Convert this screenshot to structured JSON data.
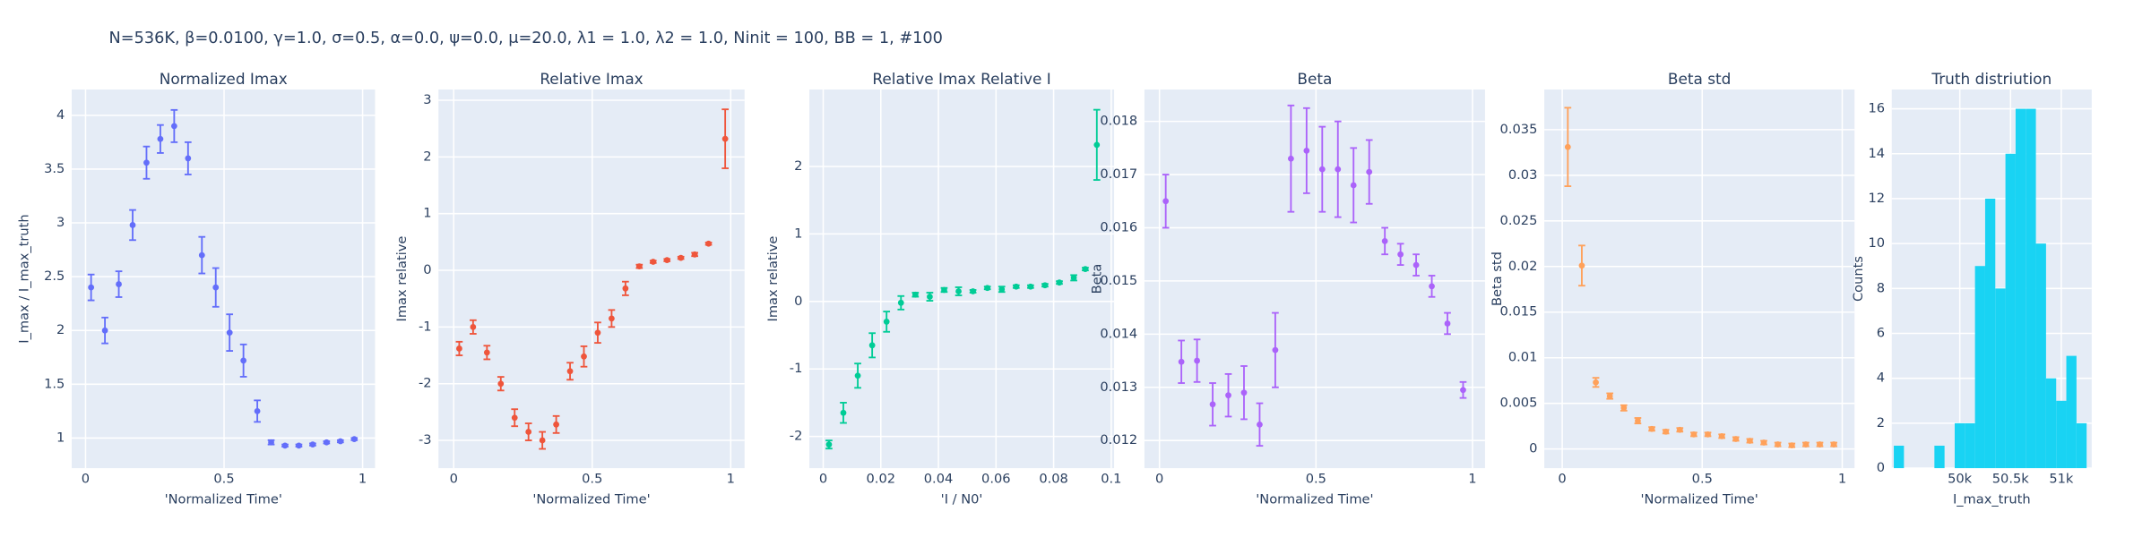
{
  "title": "N=536K, β=0.0100, γ=1.0, σ=0.5,  α=0.0, ψ=0.0, μ=20.0, λ1 = 1.0, λ2 = 1.0, Ninit = 100, BB = 1, #100",
  "chart_data": [
    {
      "type": "scatter",
      "title": "Normalized Imax",
      "x_label": "'Normalized Time'",
      "y_label": "I_max / I_max_truth",
      "x": [
        0.02,
        0.07,
        0.12,
        0.17,
        0.22,
        0.27,
        0.32,
        0.37,
        0.42,
        0.47,
        0.52,
        0.57,
        0.62,
        0.67,
        0.72,
        0.77,
        0.82,
        0.87,
        0.92,
        0.97
      ],
      "values": [
        2.4,
        2.0,
        2.43,
        2.98,
        3.56,
        3.78,
        3.9,
        3.6,
        2.7,
        2.4,
        1.98,
        1.72,
        1.25,
        0.96,
        0.93,
        0.93,
        0.94,
        0.96,
        0.97,
        0.99
      ],
      "errors": [
        0.12,
        0.12,
        0.12,
        0.14,
        0.15,
        0.13,
        0.15,
        0.15,
        0.17,
        0.18,
        0.17,
        0.15,
        0.1,
        0.02,
        0.01,
        0.01,
        0.01,
        0.01,
        0.01,
        0.01
      ],
      "color": "#636efa",
      "xlim": [
        -0.05,
        1.045
      ],
      "ylim": [
        0.72,
        4.24
      ],
      "xticks": [
        0,
        0.5,
        1
      ],
      "yticks": [
        1,
        1.5,
        2,
        2.5,
        3,
        3.5,
        4
      ],
      "grid": true
    },
    {
      "type": "scatter",
      "title": "Relative Imax",
      "x_label": "'Normalized Time'",
      "y_label": "Imax relative",
      "x": [
        0.02,
        0.07,
        0.12,
        0.17,
        0.22,
        0.27,
        0.32,
        0.37,
        0.42,
        0.47,
        0.52,
        0.57,
        0.62,
        0.67,
        0.72,
        0.77,
        0.82,
        0.87,
        0.92,
        0.98
      ],
      "values": [
        -1.38,
        -1.0,
        -1.45,
        -2.0,
        -2.6,
        -2.85,
        -3.0,
        -2.72,
        -1.78,
        -1.52,
        -1.1,
        -0.85,
        -0.32,
        0.07,
        0.15,
        0.18,
        0.22,
        0.28,
        0.47,
        2.32
      ],
      "errors": [
        0.12,
        0.12,
        0.12,
        0.12,
        0.15,
        0.15,
        0.15,
        0.15,
        0.15,
        0.18,
        0.18,
        0.15,
        0.12,
        0.03,
        0.02,
        0.02,
        0.02,
        0.03,
        0.02,
        0.52
      ],
      "color": "#ef553b",
      "xlim": [
        -0.055,
        1.05
      ],
      "ylim": [
        -3.49,
        3.19
      ],
      "xticks": [
        0,
        0.5,
        1
      ],
      "yticks": [
        -3,
        -2,
        -1,
        0,
        1,
        2,
        3
      ],
      "grid": true
    },
    {
      "type": "scatter",
      "title": "Relative Imax Relative I",
      "x_label": "'I / N0'",
      "y_label": "Imax relative",
      "x": [
        0.002,
        0.007,
        0.012,
        0.017,
        0.022,
        0.027,
        0.032,
        0.037,
        0.042,
        0.047,
        0.052,
        0.057,
        0.062,
        0.067,
        0.072,
        0.077,
        0.082,
        0.087,
        0.091,
        0.095
      ],
      "values": [
        -2.12,
        -1.65,
        -1.1,
        -0.65,
        -0.3,
        -0.02,
        0.1,
        0.07,
        0.17,
        0.15,
        0.15,
        0.2,
        0.18,
        0.22,
        0.22,
        0.24,
        0.28,
        0.35,
        0.48,
        2.32
      ],
      "errors": [
        0.06,
        0.15,
        0.18,
        0.18,
        0.15,
        0.1,
        0.03,
        0.06,
        0.03,
        0.06,
        0.02,
        0.02,
        0.04,
        0.02,
        0.02,
        0.02,
        0.02,
        0.04,
        0.02,
        0.52
      ],
      "color": "#00cc96",
      "xlim": [
        -0.0048,
        0.101
      ],
      "ylim": [
        -2.47,
        3.14
      ],
      "xticks": [
        0,
        0.02,
        0.04,
        0.06,
        0.08,
        0.1
      ],
      "yticks": [
        -2,
        -1,
        0,
        1,
        2
      ],
      "grid": true
    },
    {
      "type": "scatter",
      "title": "Beta",
      "x_label": "'Normalized Time'",
      "y_label": "Beta",
      "x": [
        0.02,
        0.07,
        0.12,
        0.17,
        0.22,
        0.27,
        0.32,
        0.37,
        0.42,
        0.47,
        0.52,
        0.57,
        0.62,
        0.67,
        0.72,
        0.77,
        0.82,
        0.87,
        0.92,
        0.97
      ],
      "values": [
        0.0165,
        0.01348,
        0.0135,
        0.01268,
        0.01285,
        0.0129,
        0.0123,
        0.0137,
        0.0173,
        0.01745,
        0.0171,
        0.0171,
        0.0168,
        0.01705,
        0.01575,
        0.0155,
        0.0153,
        0.0149,
        0.0142,
        0.01295
      ],
      "errors": [
        0.0005,
        0.0004,
        0.0004,
        0.0004,
        0.0004,
        0.0005,
        0.0004,
        0.0007,
        0.001,
        0.0008,
        0.0008,
        0.0009,
        0.0007,
        0.0006,
        0.00025,
        0.0002,
        0.0002,
        0.0002,
        0.0002,
        0.00015
      ],
      "color": "#ab63fa",
      "xlim": [
        -0.048,
        1.04
      ],
      "ylim": [
        0.01148,
        0.0186
      ],
      "xticks": [
        0,
        0.5,
        1
      ],
      "yticks": [
        0.012,
        0.013,
        0.014,
        0.015,
        0.016,
        0.017,
        0.018
      ],
      "grid": true
    },
    {
      "type": "scatter",
      "title": "Beta std",
      "x_label": "'Normalized Time'",
      "y_label": "Beta std",
      "x": [
        0.02,
        0.07,
        0.12,
        0.17,
        0.22,
        0.27,
        0.32,
        0.37,
        0.42,
        0.47,
        0.52,
        0.57,
        0.62,
        0.67,
        0.72,
        0.77,
        0.82,
        0.87,
        0.92,
        0.97
      ],
      "values": [
        0.0331,
        0.0201,
        0.0073,
        0.0058,
        0.0045,
        0.0031,
        0.0022,
        0.0019,
        0.0021,
        0.0016,
        0.0016,
        0.0014,
        0.0011,
        0.0009,
        0.0007,
        0.0005,
        0.0004,
        0.0005,
        0.0005,
        0.0005
      ],
      "errors": [
        0.0043,
        0.0022,
        0.0005,
        0.0003,
        0.0003,
        0.0003,
        0.0002,
        0.0002,
        0.0002,
        0.0002,
        0.0002,
        0.0002,
        0.0002,
        0.0002,
        0.0002,
        0.0002,
        0.0002,
        0.0002,
        0.0002,
        0.0002
      ],
      "color": "#ffa15a",
      "xlim": [
        -0.064,
        1.044
      ],
      "ylim": [
        -0.0021,
        0.0394
      ],
      "xticks": [
        0,
        0.5,
        1
      ],
      "yticks": [
        0,
        0.005,
        0.01,
        0.015,
        0.02,
        0.025,
        0.03,
        0.035
      ],
      "grid": true
    },
    {
      "type": "histogram",
      "title": "Truth distriution",
      "x_label": "I_max_truth",
      "y_label": "Counts",
      "bins": [
        49350,
        49450,
        49550,
        49650,
        49750,
        49850,
        49950,
        50050,
        50150,
        50250,
        50350,
        50450,
        50550,
        50650,
        50750,
        50850,
        50950,
        51050,
        51150,
        51250
      ],
      "values": [
        1,
        0,
        0,
        0,
        1,
        0,
        2,
        2,
        9,
        12,
        8,
        14,
        16,
        16,
        10,
        4,
        3,
        5,
        2
      ],
      "color": "#19d3f3",
      "xlim": [
        49330,
        51300
      ],
      "ylim": [
        0,
        16.86
      ],
      "xticks": [
        {
          "value": 50000,
          "label": "50k"
        },
        {
          "value": 50500,
          "label": "50.5k"
        },
        {
          "value": 51000,
          "label": "51k"
        }
      ],
      "yticks": [
        0,
        2,
        4,
        6,
        8,
        10,
        12,
        14,
        16
      ],
      "grid": true
    }
  ]
}
